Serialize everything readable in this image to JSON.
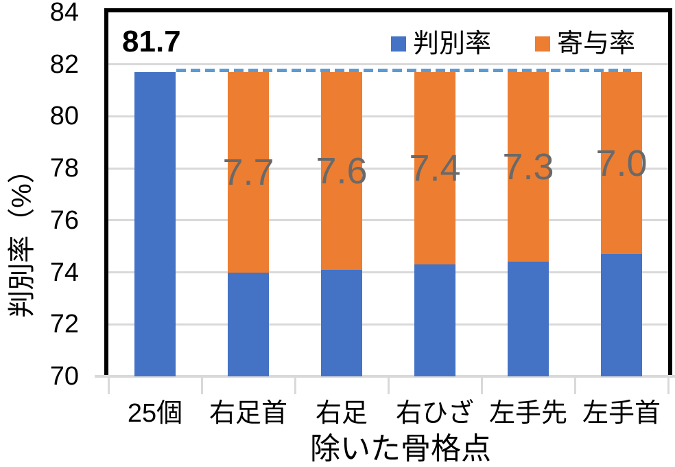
{
  "chart_data": {
    "type": "bar",
    "stacked": true,
    "categories": [
      "25個",
      "右足首",
      "右足",
      "右ひざ",
      "左手先",
      "左手首"
    ],
    "series": [
      {
        "name": "判別率",
        "color": "#4472C4",
        "values": [
          81.7,
          74.0,
          74.1,
          74.3,
          74.4,
          74.7
        ]
      },
      {
        "name": "寄与率",
        "color": "#ED7D31",
        "values": [
          0,
          7.7,
          7.6,
          7.4,
          7.3,
          7.0
        ]
      }
    ],
    "data_labels": {
      "first_bar_total": "81.7",
      "contribution_labels": [
        "",
        "7.7",
        "7.6",
        "7.4",
        "7.3",
        "7.0"
      ]
    },
    "xlabel": "除いた骨格点",
    "ylabel": "判別率（%）",
    "ylim": [
      70,
      84
    ],
    "yticks": [
      70,
      72,
      74,
      76,
      78,
      80,
      82,
      84
    ],
    "grid": true,
    "legend_position": "top-right-inside",
    "reference_line": {
      "value": 81.7,
      "style": "dashed",
      "color": "#5B9BD5"
    }
  },
  "colors": {
    "series_blue": "#4472C4",
    "series_orange": "#ED7D31",
    "reference_dash": "#5B9BD5",
    "gridline": "#D9D9D9",
    "axis_line": "#D9D9D9",
    "contribution_label_gray": "#696969",
    "text_black": "#000000",
    "plot_border_black": "#000000"
  }
}
